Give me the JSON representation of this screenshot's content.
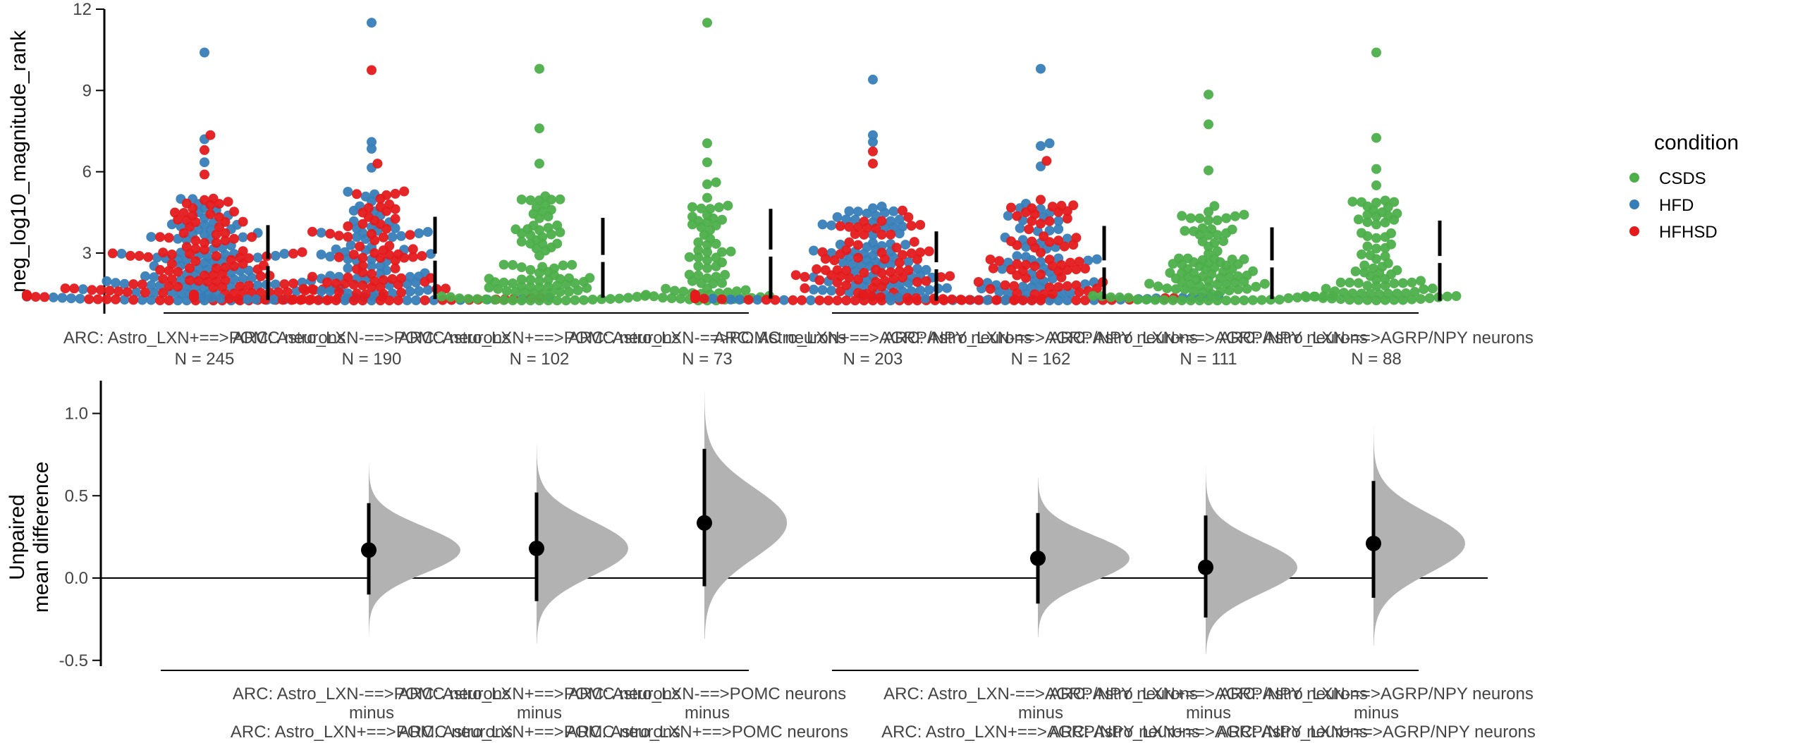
{
  "chart_data": [
    {
      "type": "scatter",
      "subtype": "swarm",
      "title": "",
      "xlabel": "",
      "ylabel": "neg_log10_magnitude_rank",
      "ylim": [
        0.7,
        12
      ],
      "yticks": [
        3,
        6,
        9,
        12
      ],
      "grid": false,
      "legend": {
        "title": "condition",
        "placement": "right",
        "entries": [
          {
            "name": "CSDS",
            "color": "#4daf4a"
          },
          {
            "name": "HFD",
            "color": "#377eb8"
          },
          {
            "name": "HFHSD",
            "color": "#e41a1c"
          }
        ]
      },
      "groups": [
        {
          "label": "ARC: Astro_LXN+==>POMC neurons",
          "n_label": "N = 245",
          "n": 245,
          "conditions": {
            "HFD": 110,
            "HFHSD": 135
          },
          "mean": 2.65,
          "sd_low": 1.27,
          "sd_high": 4.03,
          "max": 10.4,
          "outliers": [
            {
              "v": 10.4,
              "c": "HFD"
            },
            {
              "v": 7.35,
              "c": "HFHSD"
            },
            {
              "v": 7.2,
              "c": "HFD"
            },
            {
              "v": 6.8,
              "c": "HFHSD"
            },
            {
              "v": 6.35,
              "c": "HFD"
            },
            {
              "v": 5.9,
              "c": "HFHSD"
            }
          ]
        },
        {
          "label": "ARC: Astro_LXN-==>POMC neurons",
          "n_label": "N = 190",
          "n": 190,
          "conditions": {
            "HFD": 85,
            "HFHSD": 105
          },
          "mean": 2.85,
          "sd_low": 1.3,
          "sd_high": 4.34,
          "max": 11.5,
          "outliers": [
            {
              "v": 11.5,
              "c": "HFD"
            },
            {
              "v": 9.75,
              "c": "HFHSD"
            },
            {
              "v": 7.1,
              "c": "HFD"
            },
            {
              "v": 6.85,
              "c": "HFD"
            },
            {
              "v": 6.3,
              "c": "HFHSD"
            },
            {
              "v": 6.15,
              "c": "HFD"
            }
          ]
        },
        {
          "label": "ARC: Astro_LXN+==>POMC neurons",
          "n_label": "N = 102",
          "n": 102,
          "conditions": {
            "CSDS": 102
          },
          "mean": 2.8,
          "sd_low": 1.35,
          "sd_high": 4.3,
          "max": 9.8,
          "outliers": [
            {
              "v": 9.8,
              "c": "CSDS"
            },
            {
              "v": 7.6,
              "c": "CSDS"
            },
            {
              "v": 6.3,
              "c": "CSDS"
            }
          ]
        },
        {
          "label": "ARC: Astro_LXN-==>POMC neurons",
          "n_label": "N = 73",
          "n": 73,
          "conditions": {
            "CSDS": 73
          },
          "mean": 3.0,
          "sd_low": 1.32,
          "sd_high": 4.63,
          "max": 11.5,
          "outliers": [
            {
              "v": 11.5,
              "c": "CSDS"
            },
            {
              "v": 7.05,
              "c": "CSDS"
            },
            {
              "v": 6.35,
              "c": "CSDS"
            }
          ]
        },
        {
          "label": "ARC: Astro_LXN+==>AGRP/NPY neurons",
          "n_label": "N = 203",
          "n": 203,
          "conditions": {
            "HFD": 95,
            "HFHSD": 108
          },
          "mean": 2.53,
          "sd_low": 1.24,
          "sd_high": 3.8,
          "max": 9.4,
          "outliers": [
            {
              "v": 9.4,
              "c": "HFD"
            },
            {
              "v": 7.35,
              "c": "HFD"
            },
            {
              "v": 7.1,
              "c": "HFD"
            },
            {
              "v": 6.75,
              "c": "HFHSD"
            },
            {
              "v": 6.3,
              "c": "HFHSD"
            }
          ]
        },
        {
          "label": "ARC: Astro_LXN-==>AGRP/NPY neurons",
          "n_label": "N = 162",
          "n": 162,
          "conditions": {
            "HFD": 72,
            "HFHSD": 90
          },
          "mean": 2.6,
          "sd_low": 1.3,
          "sd_high": 4.0,
          "max": 9.8,
          "outliers": [
            {
              "v": 9.8,
              "c": "HFD"
            },
            {
              "v": 7.05,
              "c": "HFD"
            },
            {
              "v": 6.95,
              "c": "HFD"
            },
            {
              "v": 6.4,
              "c": "HFHSD"
            },
            {
              "v": 6.2,
              "c": "HFD"
            }
          ]
        },
        {
          "label": "ARC: Astro_LXN+==>AGRP/NPY neurons",
          "n_label": "N = 111",
          "n": 111,
          "conditions": {
            "CSDS": 111
          },
          "mean": 2.6,
          "sd_low": 1.3,
          "sd_high": 3.95,
          "max": 8.85,
          "outliers": [
            {
              "v": 8.85,
              "c": "CSDS"
            },
            {
              "v": 7.75,
              "c": "CSDS"
            },
            {
              "v": 6.05,
              "c": "CSDS"
            }
          ]
        },
        {
          "label": "ARC: Astro_LXN-==>AGRP/NPY neurons",
          "n_label": "N = 88",
          "n": 88,
          "conditions": {
            "CSDS": 88
          },
          "mean": 2.76,
          "sd_low": 1.24,
          "sd_high": 4.2,
          "max": 10.4,
          "outliers": [
            {
              "v": 10.4,
              "c": "CSDS"
            },
            {
              "v": 7.25,
              "c": "CSDS"
            },
            {
              "v": 6.1,
              "c": "CSDS"
            },
            {
              "v": 5.5,
              "c": "CSDS"
            }
          ]
        }
      ]
    },
    {
      "type": "scatter",
      "subtype": "effect-size",
      "ylabel": "Unpaired\nmean difference",
      "ylabel_lines": [
        "Unpaired",
        "mean difference"
      ],
      "ylim": [
        -0.5,
        1.2
      ],
      "yticks": [
        1.0,
        0.5,
        0.0,
        -0.5
      ],
      "ytick_labels": [
        "1.0",
        "0.5",
        "0.0",
        "-0.5"
      ],
      "zero_line": true,
      "comparisons": [
        {
          "test": "ARC: Astro_LXN-==>POMC neurons",
          "minus": "minus",
          "control": "ARC: Astro_LXN+==>POMC neurons",
          "diff": 0.17,
          "ci": [
            -0.1,
            0.455
          ],
          "dist_range": [
            -0.35,
            0.69
          ],
          "slot": 1
        },
        {
          "test": "ARC: Astro_LXN+==>POMC neurons",
          "minus": "minus",
          "control": "ARC: Astro_LXN+==>POMC neurons",
          "diff": 0.18,
          "ci": [
            -0.14,
            0.52
          ],
          "dist_range": [
            -0.4,
            0.82
          ],
          "slot": 2
        },
        {
          "test": "ARC: Astro_LXN-==>POMC neurons",
          "minus": "minus",
          "control": "ARC: Astro_LXN+==>POMC neurons",
          "diff": 0.335,
          "ci": [
            -0.05,
            0.785
          ],
          "dist_range": [
            -0.37,
            1.13
          ],
          "slot": 3
        },
        {
          "test": "ARC: Astro_LXN-==>AGRP/NPY neurons",
          "minus": "minus",
          "control": "ARC: Astro_LXN+==>AGRP/NPY neurons",
          "diff": 0.12,
          "ci": [
            -0.155,
            0.395
          ],
          "dist_range": [
            -0.36,
            0.61
          ],
          "slot": 5
        },
        {
          "test": "ARC: Astro_LXN+==>AGRP/NPY neurons",
          "minus": "minus",
          "control": "ARC: Astro_LXN+==>AGRP/NPY neurons",
          "diff": 0.065,
          "ci": [
            -0.24,
            0.38
          ],
          "dist_range": [
            -0.46,
            0.69
          ],
          "slot": 6
        },
        {
          "test": "ARC: Astro_LXN-==>AGRP/NPY neurons",
          "minus": "minus",
          "control": "ARC: Astro_LXN+==>AGRP/NPY neurons",
          "diff": 0.21,
          "ci": [
            -0.12,
            0.59
          ],
          "dist_range": [
            -0.41,
            0.95
          ],
          "slot": 7
        }
      ]
    }
  ],
  "colors": {
    "CSDS": "#4daf4a",
    "HFD": "#377eb8",
    "HFHSD": "#e41a1c",
    "axis": "#000000",
    "tick_text": "#444444",
    "bootstrap_fill": "#b2b2b2"
  }
}
